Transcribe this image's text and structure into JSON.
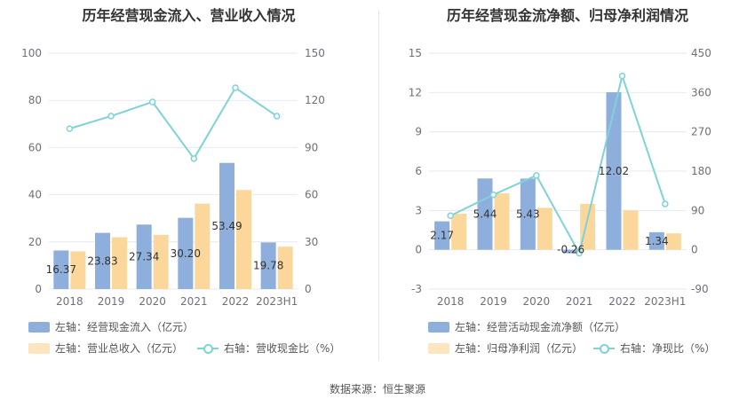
{
  "footer": {
    "source": "数据来源：恒生聚源"
  },
  "colors": {
    "bar1": "#8eaedc",
    "bar2": "#fcd79c",
    "line": "#7fd3d6",
    "grid": "#e6e9f0",
    "axis_text": "#6e7079",
    "label": "#333333"
  },
  "chart_data": [
    {
      "type": "bar+line",
      "title": "历年经营现金流入、营业收入情况",
      "categories": [
        "2018",
        "2019",
        "2020",
        "2021",
        "2022",
        "2023H1"
      ],
      "left_axis": {
        "min": 0,
        "max": 100,
        "ticks": [
          "0",
          "20",
          "40",
          "60",
          "80",
          "100"
        ]
      },
      "right_axis": {
        "min": 0,
        "max": 150,
        "ticks": [
          "0",
          "30",
          "60",
          "90",
          "120",
          "150"
        ]
      },
      "series": [
        {
          "name": "左轴：经营现金流入（亿元）",
          "type": "bar",
          "axis": "left",
          "values": [
            16.37,
            23.83,
            27.34,
            30.2,
            53.49,
            19.78
          ],
          "labels": [
            "16.37",
            "23.83",
            "27.34",
            "30.20",
            "53.49",
            "19.78"
          ]
        },
        {
          "name": "左轴：营业总收入（亿元）",
          "type": "bar",
          "axis": "left",
          "values": [
            16.0,
            22.0,
            23.0,
            36.2,
            42.0,
            18.0
          ]
        },
        {
          "name": "右轴：营收现金比（%）",
          "type": "line",
          "axis": "right",
          "values": [
            102,
            110,
            119,
            83,
            128,
            110
          ]
        }
      ],
      "grid": true,
      "legend": "bottom"
    },
    {
      "type": "bar+line",
      "title": "历年经营现金流净额、归母净利润情况",
      "categories": [
        "2018",
        "2019",
        "2020",
        "2021",
        "2022",
        "2023H1"
      ],
      "left_axis": {
        "min": -3,
        "max": 15,
        "ticks": [
          "-3",
          "0",
          "3",
          "6",
          "9",
          "12",
          "15"
        ]
      },
      "right_axis": {
        "min": -90,
        "max": 450,
        "ticks": [
          "-90",
          "0",
          "90",
          "180",
          "270",
          "360",
          "450"
        ]
      },
      "series": [
        {
          "name": "左轴：经营活动现金流净额（亿元）",
          "type": "bar",
          "axis": "left",
          "values": [
            2.17,
            5.44,
            5.43,
            -0.26,
            12.02,
            1.34
          ],
          "labels": [
            "2.17",
            "5.44",
            "5.43",
            "-0.26",
            "12.02",
            "1.34"
          ]
        },
        {
          "name": "左轴：归母净利润（亿元）",
          "type": "bar",
          "axis": "left",
          "values": [
            2.75,
            4.3,
            3.2,
            3.5,
            3.0,
            1.25
          ]
        },
        {
          "name": "右轴：净现比（%）",
          "type": "line",
          "axis": "right",
          "values": [
            78,
            126,
            170,
            -8,
            398,
            105
          ]
        }
      ],
      "grid": true,
      "legend": "bottom"
    }
  ]
}
